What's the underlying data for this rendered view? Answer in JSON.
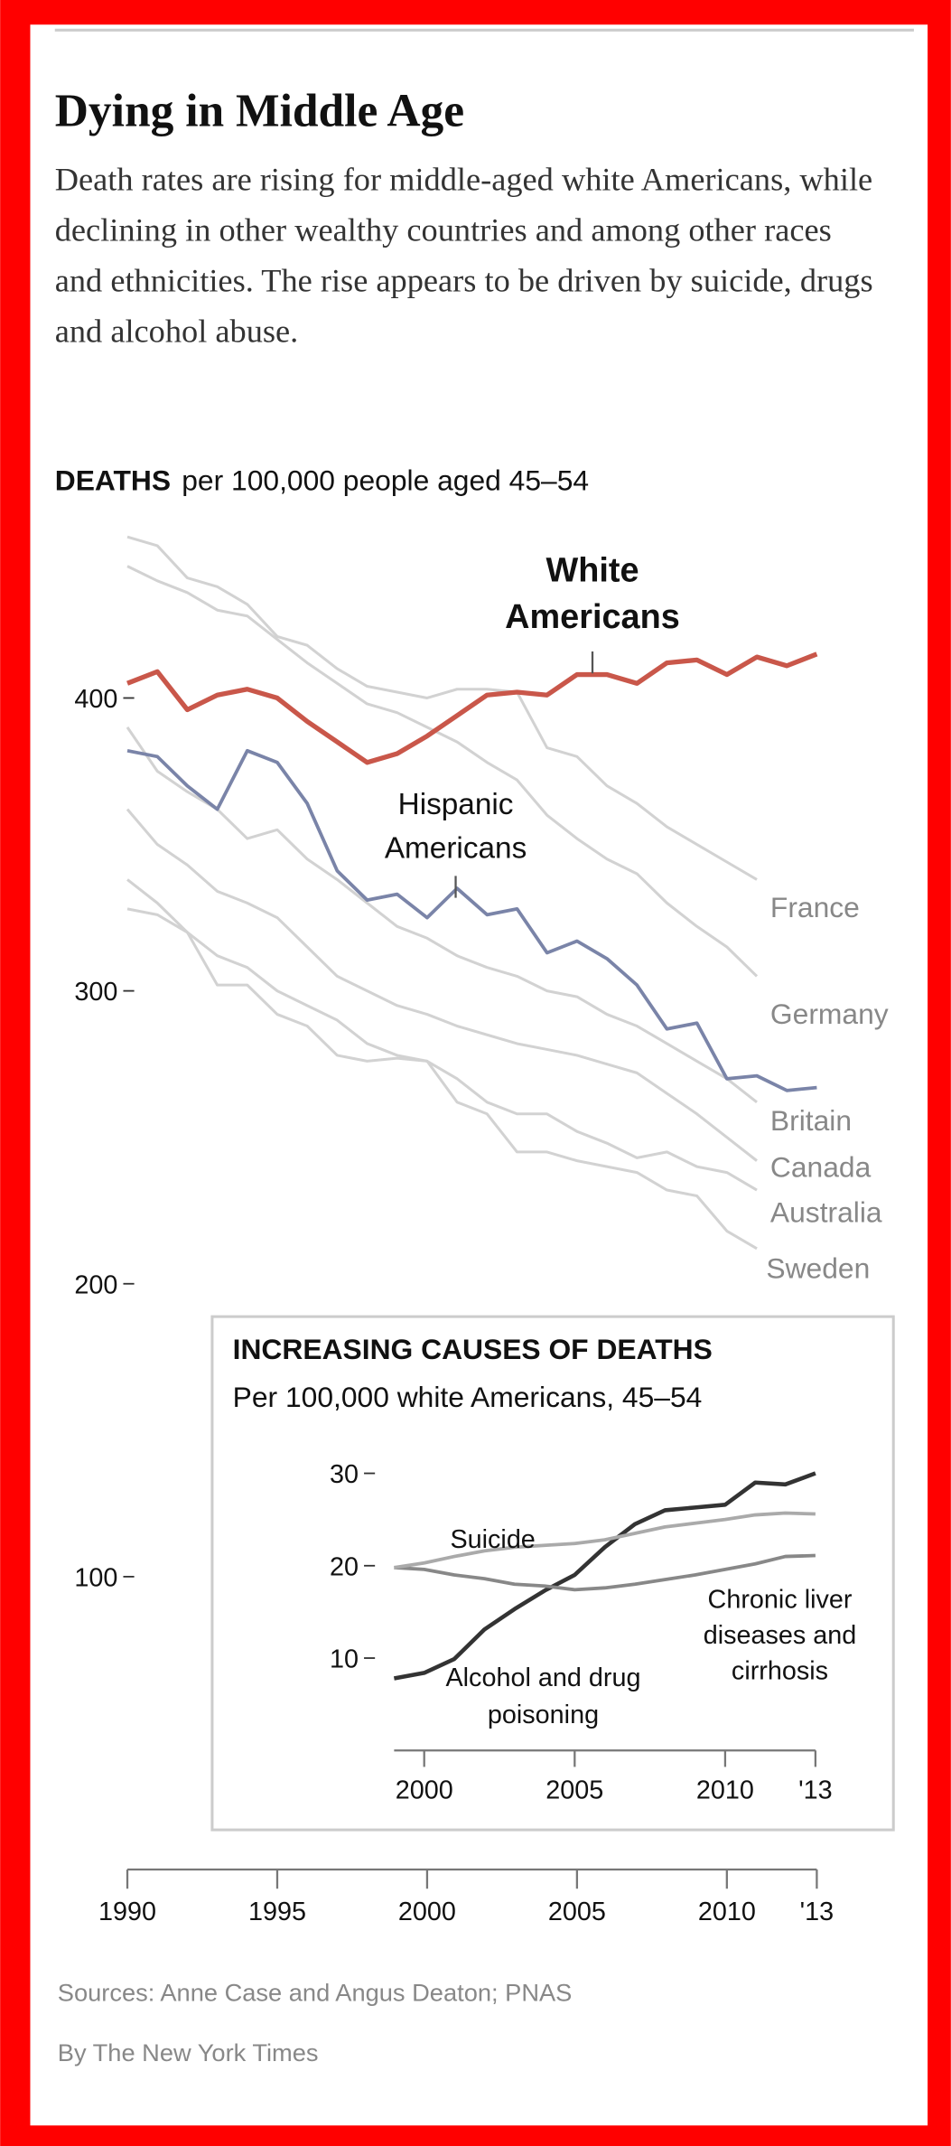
{
  "chart_data": [
    {
      "type": "line",
      "title": "Dying in Middle Age",
      "subtitle": "Death rates are rising for middle-aged white Americans, while declining in other wealthy countries and among other races and ethnicities. The rise appears to be driven by suicide, drugs and alcohol abuse.",
      "y_label_bold": "DEATHS",
      "y_label": "per 100,000 people aged 45–54",
      "x": [
        1990,
        1991,
        1992,
        1993,
        1994,
        1995,
        1996,
        1997,
        1998,
        1999,
        2000,
        2001,
        2002,
        2003,
        2004,
        2005,
        2006,
        2007,
        2008,
        2009,
        2010,
        2011,
        2012,
        2013
      ],
      "xlim": [
        1990,
        2013
      ],
      "xticks": [
        1990,
        1995,
        2000,
        2005,
        2010,
        {
          "value": 2013,
          "label": "'13"
        }
      ],
      "ylim": [
        0,
        460
      ],
      "yticks": [
        100,
        200,
        300,
        400
      ],
      "series": [
        {
          "name": "White Americans",
          "color": "#c9574a",
          "values": [
            405,
            409,
            396,
            401,
            403,
            400,
            392,
            385,
            378,
            381,
            387,
            394,
            401,
            402,
            401,
            408,
            408,
            405,
            412,
            413,
            408,
            414,
            411,
            415
          ]
        },
        {
          "name": "Hispanic Americans",
          "color": "#7a84a8",
          "values": [
            382,
            380,
            370,
            362,
            382,
            378,
            364,
            341,
            331,
            333,
            325,
            335,
            326,
            328,
            313,
            317,
            311,
            302,
            287,
            289,
            270,
            271,
            266,
            267
          ]
        },
        {
          "name": "France",
          "color": "#d2d2d2",
          "values": [
            455,
            452,
            441,
            438,
            432,
            421,
            418,
            410,
            404,
            402,
            400,
            403,
            403,
            402,
            383,
            380,
            370,
            364,
            356,
            350,
            344,
            338,
            null,
            null
          ]
        },
        {
          "name": "Germany",
          "color": "#d2d2d2",
          "values": [
            445,
            440,
            436,
            430,
            428,
            420,
            412,
            405,
            398,
            395,
            390,
            385,
            378,
            372,
            360,
            352,
            345,
            340,
            330,
            322,
            315,
            305,
            null,
            null
          ]
        },
        {
          "name": "Britain",
          "color": "#d2d2d2",
          "values": [
            390,
            375,
            368,
            362,
            352,
            355,
            345,
            338,
            330,
            322,
            318,
            312,
            308,
            305,
            300,
            298,
            292,
            288,
            282,
            276,
            270,
            262,
            null,
            null
          ]
        },
        {
          "name": "Canada",
          "color": "#d2d2d2",
          "values": [
            362,
            350,
            343,
            334,
            330,
            325,
            315,
            305,
            300,
            295,
            292,
            288,
            285,
            282,
            280,
            278,
            275,
            272,
            265,
            258,
            250,
            242,
            null,
            null
          ]
        },
        {
          "name": "Australia",
          "color": "#d2d2d2",
          "values": [
            338,
            330,
            320,
            312,
            308,
            300,
            295,
            290,
            282,
            278,
            276,
            270,
            262,
            258,
            258,
            252,
            248,
            243,
            245,
            240,
            238,
            232,
            null,
            null
          ]
        },
        {
          "name": "Sweden",
          "color": "#d2d2d2",
          "values": [
            328,
            326,
            320,
            302,
            302,
            292,
            288,
            278,
            276,
            277,
            276,
            262,
            258,
            245,
            245,
            242,
            240,
            238,
            232,
            230,
            218,
            212,
            null,
            null
          ]
        }
      ]
    },
    {
      "type": "line",
      "title": "INCREASING CAUSES OF DEATHS",
      "subtitle": "Per 100,000 white Americans, 45–54",
      "x": [
        1999,
        2000,
        2001,
        2002,
        2003,
        2004,
        2005,
        2006,
        2007,
        2008,
        2009,
        2010,
        2011,
        2012,
        2013
      ],
      "xlim": [
        1999,
        2013
      ],
      "xticks": [
        2000,
        2005,
        2010,
        {
          "value": 2013,
          "label": "'13"
        }
      ],
      "ylim": [
        0,
        31
      ],
      "yticks": [
        10,
        20,
        30
      ],
      "series": [
        {
          "name": "Suicide",
          "color": "#aaaaaa",
          "values": [
            19.8,
            20.3,
            21.0,
            21.6,
            22.0,
            22.2,
            22.4,
            22.8,
            23.5,
            24.2,
            24.6,
            25.0,
            25.5,
            25.7,
            25.6
          ]
        },
        {
          "name": "Chronic liver diseases and cirrhosis",
          "color": "#888888",
          "values": [
            19.8,
            19.6,
            19.0,
            18.6,
            18.0,
            17.8,
            17.4,
            17.6,
            18.0,
            18.5,
            19.0,
            19.6,
            20.2,
            21.0,
            21.1
          ]
        },
        {
          "name": "Alcohol and drug poisoning",
          "color": "#333333",
          "values": [
            7.8,
            8.4,
            9.9,
            13.1,
            15.3,
            17.3,
            19.0,
            22.0,
            24.5,
            26.0,
            26.3,
            26.6,
            29.0,
            28.8,
            30.0
          ]
        }
      ]
    }
  ],
  "sources": "Sources: Anne Case and Angus Deaton; PNAS",
  "byline": "By The New York Times"
}
